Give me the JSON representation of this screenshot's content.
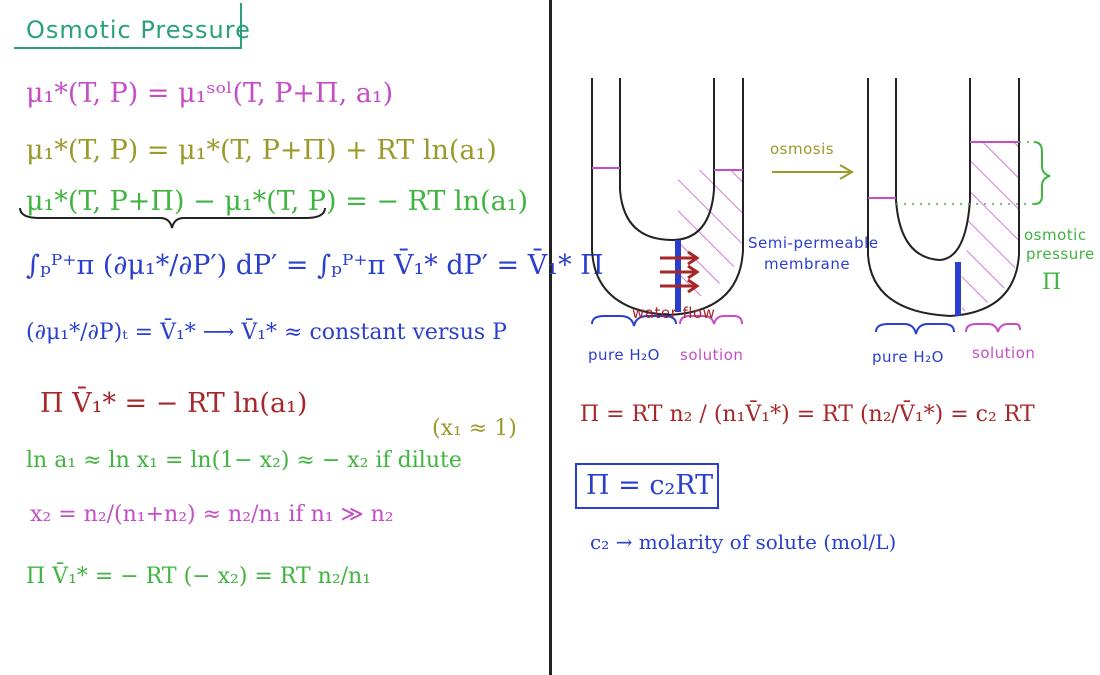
{
  "title": "Osmotic Pressure",
  "left_equations": {
    "eq1": "μ₁*(T, P) = μ₁ˢᵒˡ(T, P+Π, a₁)",
    "eq2": "μ₁*(T, P) = μ₁*(T, P+Π) + RT ln(a₁)",
    "eq3": "μ₁*(T, P+Π) − μ₁*(T, P) = − RT ln(a₁)",
    "eq4": "∫ₚᴾ⁺ᴨ (∂μ₁*/∂P′) dP′ = ∫ₚᴾ⁺ᴨ V̄₁* dP′ = V̄₁* Π",
    "eq5": "(∂μ₁*/∂P)ₜ = V̄₁*  ⟶  V̄₁* ≈ constant versus P",
    "eq6": "Π V̄₁* = − RT ln(a₁)",
    "eq7_note": "(x₁ ≈ 1)",
    "eq7": "ln a₁ ≈ ln x₁ = ln(1− x₂) ≈ − x₂  if dilute",
    "eq8": "x₂ = n₂/(n₁+n₂) ≈ n₂/n₁   if   n₁ ≫ n₂",
    "eq9": "Π V̄₁* = − RT (− x₂) = RT n₂/n₁"
  },
  "diagram": {
    "semi_permeable": "Semi-permeable",
    "membrane": "membrane",
    "water_flow": "water flow",
    "pure_water_left": "pure H₂O",
    "solution_left": "solution",
    "osmosis": "osmosis",
    "osmotic": "osmotic",
    "pressure": "pressure",
    "pi_symbol": "Π",
    "pure_water_right": "pure H₂O",
    "solution_right": "solution"
  },
  "right_equations": {
    "pi_formula": "Π = RT n₂ / (n₁V̄₁*) = RT (n₂/V̄₁*) = c₂ RT",
    "boxed": "Π = c₂RT",
    "c2_def": "c₂ → molarity of solute (mol/L)"
  },
  "colors": {
    "teal": "#2aa17a",
    "magenta": "#c54dc6",
    "olive": "#9a9a2a",
    "green": "#3fb43f",
    "blue": "#2a3fd0",
    "dark_red": "#a7262a"
  }
}
